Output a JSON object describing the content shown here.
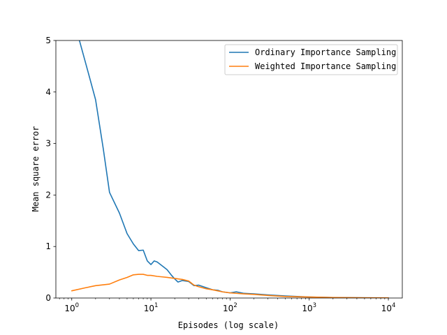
{
  "chart_data": {
    "type": "line",
    "title": "",
    "xlabel": "Episodes (log scale)",
    "ylabel": "Mean square error",
    "xscale": "log",
    "xlim": [
      0.63,
      15000
    ],
    "ylim": [
      0,
      5
    ],
    "grid": false,
    "legend_position": "top-right",
    "x_ticks": [
      {
        "value": 1,
        "base": "10",
        "exp": "0"
      },
      {
        "value": 10,
        "base": "10",
        "exp": "1"
      },
      {
        "value": 100,
        "base": "10",
        "exp": "2"
      },
      {
        "value": 1000,
        "base": "10",
        "exp": "3"
      },
      {
        "value": 10000,
        "base": "10",
        "exp": "4"
      }
    ],
    "y_ticks": [
      {
        "value": 0,
        "label": "0"
      },
      {
        "value": 1,
        "label": "1"
      },
      {
        "value": 2,
        "label": "2"
      },
      {
        "value": 3,
        "label": "3"
      },
      {
        "value": 4,
        "label": "4"
      },
      {
        "value": 5,
        "label": "5"
      }
    ],
    "series": [
      {
        "name": "Ordinary Importance Sampling",
        "color": "#1f77b4",
        "points": [
          [
            1.25,
            5.0
          ],
          [
            1.6,
            4.4
          ],
          [
            2.0,
            3.85
          ],
          [
            2.5,
            2.9
          ],
          [
            3.0,
            2.05
          ],
          [
            4.0,
            1.65
          ],
          [
            5.0,
            1.25
          ],
          [
            6.0,
            1.05
          ],
          [
            7.0,
            0.92
          ],
          [
            8.0,
            0.93
          ],
          [
            9.0,
            0.72
          ],
          [
            10.0,
            0.65
          ],
          [
            11.0,
            0.72
          ],
          [
            12.0,
            0.7
          ],
          [
            14.0,
            0.62
          ],
          [
            16.0,
            0.55
          ],
          [
            18.0,
            0.45
          ],
          [
            20.0,
            0.37
          ],
          [
            22.0,
            0.31
          ],
          [
            25.0,
            0.34
          ],
          [
            30.0,
            0.32
          ],
          [
            35.0,
            0.24
          ],
          [
            40.0,
            0.25
          ],
          [
            50.0,
            0.2
          ],
          [
            60.0,
            0.16
          ],
          [
            70.0,
            0.15
          ],
          [
            80.0,
            0.12
          ],
          [
            100.0,
            0.1
          ],
          [
            120.0,
            0.12
          ],
          [
            150.0,
            0.09
          ],
          [
            200.0,
            0.08
          ],
          [
            300.0,
            0.06
          ],
          [
            500.0,
            0.04
          ],
          [
            1000.0,
            0.02
          ],
          [
            2000.0,
            0.01
          ],
          [
            5000.0,
            0.005
          ],
          [
            10000.0,
            0.003
          ]
        ]
      },
      {
        "name": "Weighted Importance Sampling",
        "color": "#ff7f0e",
        "points": [
          [
            1.0,
            0.14
          ],
          [
            1.5,
            0.2
          ],
          [
            2.0,
            0.24
          ],
          [
            3.0,
            0.27
          ],
          [
            4.0,
            0.35
          ],
          [
            5.0,
            0.4
          ],
          [
            6.0,
            0.45
          ],
          [
            7.0,
            0.46
          ],
          [
            8.0,
            0.46
          ],
          [
            9.0,
            0.44
          ],
          [
            10.0,
            0.44
          ],
          [
            12.0,
            0.42
          ],
          [
            14.0,
            0.41
          ],
          [
            16.0,
            0.4
          ],
          [
            20.0,
            0.38
          ],
          [
            25.0,
            0.36
          ],
          [
            30.0,
            0.33
          ],
          [
            35.0,
            0.25
          ],
          [
            40.0,
            0.22
          ],
          [
            50.0,
            0.18
          ],
          [
            60.0,
            0.16
          ],
          [
            80.0,
            0.12
          ],
          [
            100.0,
            0.1
          ],
          [
            150.0,
            0.08
          ],
          [
            200.0,
            0.07
          ],
          [
            300.0,
            0.05
          ],
          [
            500.0,
            0.03
          ],
          [
            1000.0,
            0.02
          ],
          [
            2000.0,
            0.01
          ],
          [
            5000.0,
            0.005
          ],
          [
            10000.0,
            0.003
          ]
        ]
      }
    ]
  }
}
